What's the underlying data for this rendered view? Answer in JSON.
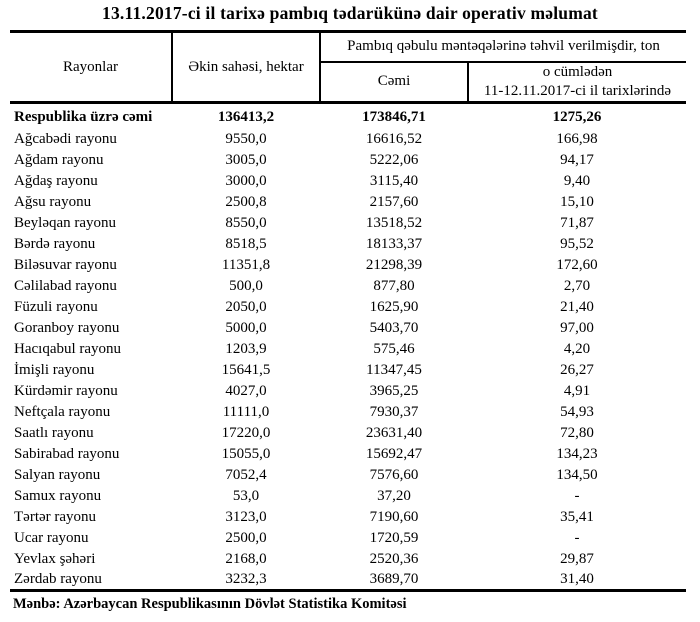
{
  "title": "13.11.2017-ci il tarixə pambıq tədarükünə dair operativ məlumat",
  "table": {
    "header": {
      "rayonlar": "Rayonlar",
      "ekin_sahesi": "Əkin sahəsi, hektar",
      "group": "Pambıq qəbulu məntəqələrinə təhvil verilmişdir, ton",
      "cemi": "Cəmi",
      "ocumleden_line1": "o cümlədən",
      "ocumleden_line2": "11-12.11.2017-ci il tarixlərində"
    },
    "total_row": {
      "name": "Respublika üzrə cəmi",
      "ekin": "136413,2",
      "cemi": "173846,71",
      "son": "1275,26"
    },
    "rows": [
      {
        "name": "Ağcabədi rayonu",
        "ekin": "9550,0",
        "cemi": "16616,52",
        "son": "166,98"
      },
      {
        "name": "Ağdam rayonu",
        "ekin": "3005,0",
        "cemi": "5222,06",
        "son": "94,17"
      },
      {
        "name": "Ağdaş rayonu",
        "ekin": "3000,0",
        "cemi": "3115,40",
        "son": "9,40"
      },
      {
        "name": "Ağsu rayonu",
        "ekin": "2500,8",
        "cemi": "2157,60",
        "son": "15,10"
      },
      {
        "name": "Beyləqan rayonu",
        "ekin": "8550,0",
        "cemi": "13518,52",
        "son": "71,87"
      },
      {
        "name": "Bərdə rayonu",
        "ekin": "8518,5",
        "cemi": "18133,37",
        "son": "95,52"
      },
      {
        "name": "Biləsuvar rayonu",
        "ekin": "11351,8",
        "cemi": "21298,39",
        "son": "172,60"
      },
      {
        "name": "Cəlilabad rayonu",
        "ekin": "500,0",
        "cemi": "877,80",
        "son": "2,70"
      },
      {
        "name": "Füzuli rayonu",
        "ekin": "2050,0",
        "cemi": "1625,90",
        "son": "21,40"
      },
      {
        "name": "Goranboy rayonu",
        "ekin": "5000,0",
        "cemi": "5403,70",
        "son": "97,00"
      },
      {
        "name": "Hacıqabul rayonu",
        "ekin": "1203,9",
        "cemi": "575,46",
        "son": "4,20"
      },
      {
        "name": "İmişli rayonu",
        "ekin": "15641,5",
        "cemi": "11347,45",
        "son": "26,27"
      },
      {
        "name": "Kürdəmir rayonu",
        "ekin": "4027,0",
        "cemi": "3965,25",
        "son": "4,91"
      },
      {
        "name": "Neftçala rayonu",
        "ekin": "11111,0",
        "cemi": "7930,37",
        "son": "54,93"
      },
      {
        "name": "Saatlı rayonu",
        "ekin": "17220,0",
        "cemi": "23631,40",
        "son": "72,80"
      },
      {
        "name": "Sabirabad rayonu",
        "ekin": "15055,0",
        "cemi": "15692,47",
        "son": "134,23"
      },
      {
        "name": "Salyan rayonu",
        "ekin": "7052,4",
        "cemi": "7576,60",
        "son": "134,50"
      },
      {
        "name": "Samux rayonu",
        "ekin": "53,0",
        "cemi": "37,20",
        "son": "-"
      },
      {
        "name": "Tərtər rayonu",
        "ekin": "3123,0",
        "cemi": "7190,60",
        "son": "35,41"
      },
      {
        "name": "Ucar rayonu",
        "ekin": "2500,0",
        "cemi": "1720,59",
        "son": "-"
      },
      {
        "name": "Yevlax şəhəri",
        "ekin": "2168,0",
        "cemi": "2520,36",
        "son": "29,87"
      },
      {
        "name": "Zərdab rayonu",
        "ekin": "3232,3",
        "cemi": "3689,70",
        "son": "31,40"
      }
    ]
  },
  "footer": "Mənbə: Azərbaycan Respublikasının Dövlət Statistika Komitəsi",
  "colors": {
    "text": "#000000",
    "background": "#ffffff",
    "border": "#000000"
  }
}
